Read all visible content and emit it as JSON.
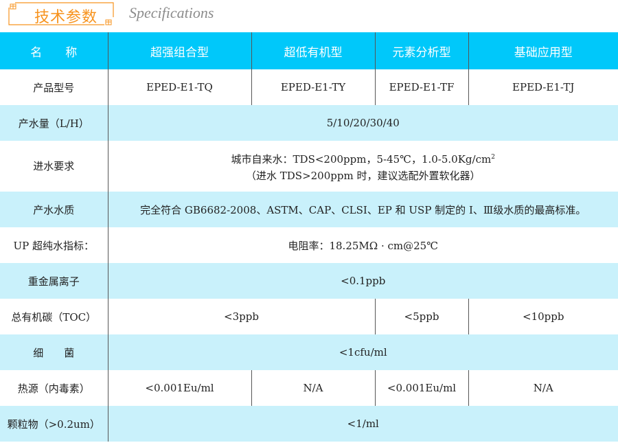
{
  "heading": {
    "title_cn": "技术参数",
    "title_en": "Specifications",
    "accent": "#f7931e"
  },
  "colors": {
    "header_bg": "#00c8fa",
    "row_alt_bg": "#c9f1fb"
  },
  "table": {
    "headers": [
      "名　　称",
      "超强组合型",
      "超低有机型",
      "元素分析型",
      "基础应用型"
    ],
    "rows": {
      "model": {
        "label": "产品型号",
        "values": [
          "EPED-E1-TQ",
          "EPED-E1-TY",
          "EPED-E1-TF",
          "EPED-E1-TJ"
        ]
      },
      "flow": {
        "label": "产水量（L/H）",
        "value": "5/10/20/30/40"
      },
      "feed": {
        "label": "进水要求",
        "line1": "城市自来水：TDS<200ppm，5-45℃，1.0-5.0Kg/cm",
        "line1_sup": "2",
        "line2": "（进水 TDS>200ppm 时，建议选配外置软化器）"
      },
      "quality": {
        "label": "产水水质",
        "value": "完全符合 GB6682-2008、ASTM、CAP、CLSI、EP 和 USP 制定的 I、Ⅲ级水质的最高标准。"
      },
      "up": {
        "label": "UP 超纯水指标：",
        "value": "电阻率：18.25MΩ · cm@25℃"
      },
      "metal": {
        "label": "重金属离子",
        "value": "<0.1ppb"
      },
      "toc": {
        "label": "总有机碳（TOC）",
        "values": [
          "<3ppb",
          "<5ppb",
          "<10ppb"
        ]
      },
      "bacteria": {
        "label": "细　　菌",
        "value": "<1cfu/ml"
      },
      "pyrogen": {
        "label": "热源（内毒素）",
        "values": [
          "<0.001Eu/ml",
          "N/A",
          "<0.001Eu/ml",
          "N/A"
        ]
      },
      "particle": {
        "label": "颗粒物（>0.2um）",
        "value": "<1/ml"
      }
    }
  }
}
